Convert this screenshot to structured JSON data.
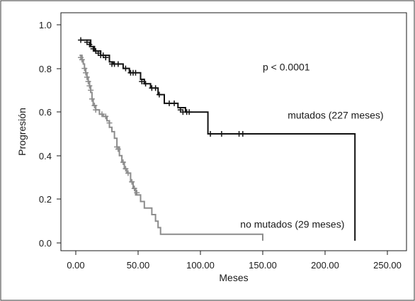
{
  "chart_data": {
    "type": "line",
    "step": true,
    "title": "",
    "xlabel": "Meses",
    "ylabel": "Progresión",
    "xlim": [
      0,
      250
    ],
    "ylim": [
      0,
      1.0
    ],
    "x_ticks": [
      "0.00",
      "50.00",
      "100.00",
      "150.00",
      "200.00",
      "250.00"
    ],
    "y_ticks": [
      "0.0",
      "0.2",
      "0.4",
      "0.6",
      "0.8",
      "1.0"
    ],
    "grid": false,
    "annotations": [
      {
        "text": "p < 0.0001",
        "x": 150,
        "y": 0.79
      },
      {
        "text": "mutados (227 meses)",
        "x": 170,
        "y": 0.57
      },
      {
        "text": "no mutados (29 meses)",
        "x": 132,
        "y": 0.07
      }
    ],
    "series": [
      {
        "color": "#111111",
        "points": [
          [
            4,
            0.93
          ],
          [
            12,
            0.9
          ],
          [
            15,
            0.88
          ],
          [
            20,
            0.86
          ],
          [
            27,
            0.83
          ],
          [
            30,
            0.82
          ],
          [
            38,
            0.8
          ],
          [
            43,
            0.78
          ],
          [
            52,
            0.75
          ],
          [
            55,
            0.73
          ],
          [
            60,
            0.71
          ],
          [
            66,
            0.68
          ],
          [
            71,
            0.64
          ],
          [
            82,
            0.62
          ],
          [
            88,
            0.6
          ],
          [
            106,
            0.5
          ],
          [
            224,
            0.5
          ],
          [
            224,
            0.01
          ]
        ],
        "censored": [
          [
            4,
            0.93
          ],
          [
            9,
            0.92
          ],
          [
            11,
            0.91
          ],
          [
            14,
            0.89
          ],
          [
            16,
            0.88
          ],
          [
            18,
            0.87
          ],
          [
            20,
            0.86
          ],
          [
            22,
            0.86
          ],
          [
            24,
            0.85
          ],
          [
            29,
            0.82
          ],
          [
            31,
            0.82
          ],
          [
            34,
            0.82
          ],
          [
            40,
            0.8
          ],
          [
            44,
            0.78
          ],
          [
            46,
            0.78
          ],
          [
            48,
            0.78
          ],
          [
            53,
            0.74
          ],
          [
            56,
            0.73
          ],
          [
            61,
            0.71
          ],
          [
            64,
            0.71
          ],
          [
            67,
            0.68
          ],
          [
            75,
            0.64
          ],
          [
            79,
            0.64
          ],
          [
            84,
            0.61
          ],
          [
            86,
            0.6
          ],
          [
            89,
            0.6
          ],
          [
            91,
            0.6
          ],
          [
            108,
            0.5
          ],
          [
            117,
            0.5
          ],
          [
            131,
            0.5
          ],
          [
            134,
            0.5
          ]
        ]
      },
      {
        "color": "#8c8c8c",
        "points": [
          [
            3,
            0.86
          ],
          [
            5,
            0.84
          ],
          [
            6,
            0.82
          ],
          [
            7,
            0.8
          ],
          [
            8,
            0.78
          ],
          [
            9,
            0.76
          ],
          [
            10,
            0.74
          ],
          [
            11,
            0.72
          ],
          [
            12,
            0.69
          ],
          [
            13,
            0.66
          ],
          [
            14,
            0.63
          ],
          [
            16,
            0.61
          ],
          [
            19,
            0.59
          ],
          [
            22,
            0.58
          ],
          [
            25,
            0.56
          ],
          [
            27,
            0.53
          ],
          [
            29,
            0.51
          ],
          [
            31,
            0.48
          ],
          [
            33,
            0.44
          ],
          [
            35,
            0.4
          ],
          [
            37,
            0.37
          ],
          [
            39,
            0.34
          ],
          [
            41,
            0.32
          ],
          [
            44,
            0.28
          ],
          [
            46,
            0.25
          ],
          [
            48,
            0.22
          ],
          [
            52,
            0.19
          ],
          [
            55,
            0.16
          ],
          [
            61,
            0.13
          ],
          [
            64,
            0.1
          ],
          [
            66,
            0.07
          ],
          [
            68,
            0.04
          ],
          [
            150,
            0.04
          ],
          [
            150,
            0.01
          ]
        ],
        "censored": [
          [
            4,
            0.85
          ],
          [
            5,
            0.84
          ],
          [
            7,
            0.8
          ],
          [
            8,
            0.78
          ],
          [
            9,
            0.76
          ],
          [
            10,
            0.74
          ],
          [
            11,
            0.72
          ],
          [
            12,
            0.7
          ],
          [
            13,
            0.66
          ],
          [
            15,
            0.63
          ],
          [
            16,
            0.61
          ],
          [
            21,
            0.59
          ],
          [
            24,
            0.58
          ],
          [
            27,
            0.55
          ],
          [
            33,
            0.44
          ],
          [
            34,
            0.43
          ],
          [
            38,
            0.37
          ],
          [
            40,
            0.34
          ],
          [
            42,
            0.32
          ],
          [
            45,
            0.28
          ],
          [
            47,
            0.25
          ],
          [
            49,
            0.23
          ]
        ]
      }
    ]
  }
}
